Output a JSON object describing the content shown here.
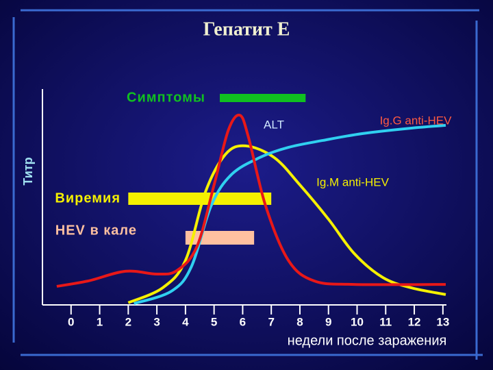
{
  "chart_data": {
    "type": "line",
    "title": "Гепатит Е",
    "y_label": "Титр",
    "x_label": "недели после заражения",
    "xlim": [
      -1,
      13.1
    ],
    "xticks": [
      0,
      1,
      2,
      3,
      4,
      5,
      6,
      7,
      8,
      9,
      10,
      11,
      12,
      13
    ],
    "ylim": [
      0,
      100
    ],
    "series": [
      {
        "name": "ALT",
        "color": "#e81818",
        "x": [
          -0.5,
          0.6,
          1.9,
          3.0,
          3.7,
          4.4,
          5.0,
          5.5,
          5.9,
          6.2,
          6.8,
          7.6,
          8.5,
          9.9,
          13.1
        ],
        "values": [
          8.6,
          11.1,
          15.6,
          14.3,
          15.9,
          27.0,
          55.6,
          81.0,
          87.9,
          77.8,
          46.0,
          20.6,
          11.1,
          9.5,
          9.5
        ]
      },
      {
        "name": "Ig.M anti-HEV",
        "color": "#f5f000",
        "x": [
          2.0,
          3.2,
          4.0,
          4.7,
          5.4,
          6.1,
          7.1,
          8.0,
          9.0,
          9.9,
          10.9,
          11.9,
          13.1
        ],
        "values": [
          1.0,
          7.9,
          20.6,
          52.4,
          69.8,
          73.7,
          68.3,
          55.6,
          39.7,
          23.8,
          12.7,
          7.9,
          4.8
        ]
      },
      {
        "name": "Ig.G anti-HEV",
        "color": "#30d0f0",
        "x": [
          2.2,
          3.5,
          4.2,
          4.9,
          5.6,
          6.6,
          7.6,
          8.8,
          10.2,
          11.9,
          13.1
        ],
        "values": [
          0.6,
          6.3,
          17.5,
          46.0,
          60.3,
          68.3,
          73.0,
          76.2,
          79.4,
          81.9,
          83.2
        ]
      }
    ],
    "ranges": [
      {
        "name": "Симптомы",
        "color": "#10c020",
        "start": 5.2,
        "end": 8.2
      },
      {
        "name": "Виремия",
        "color": "#f5f000",
        "start": 2.0,
        "end": 7.0
      },
      {
        "name": "HEV в кале",
        "color": "#ffc0a0",
        "start": 4.0,
        "end": 6.4
      }
    ]
  }
}
